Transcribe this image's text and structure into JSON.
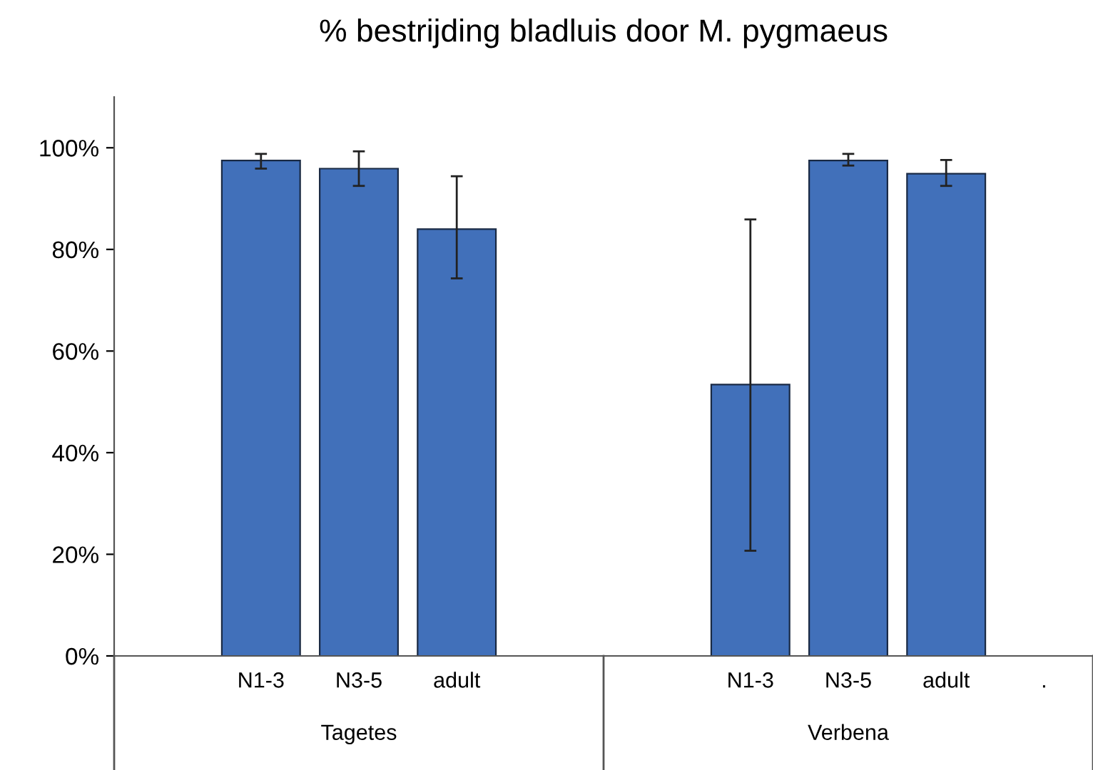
{
  "chart_data": {
    "type": "bar",
    "title": "% bestrijding bladluis door M. pygmaeus",
    "categories": [
      null,
      "N1-3",
      "N3-5",
      "adult",
      null,
      null,
      "N1-3",
      "N3-5",
      "adult",
      "."
    ],
    "values": [
      null,
      97.5,
      95.9,
      84.0,
      null,
      null,
      53.4,
      97.5,
      94.9,
      null
    ],
    "errors": [
      null,
      [
        95.9,
        98.8
      ],
      [
        92.5,
        99.3
      ],
      [
        74.3,
        94.4
      ],
      null,
      null,
      [
        20.7,
        85.9
      ],
      [
        96.5,
        98.8
      ],
      [
        92.5,
        97.6
      ],
      null
    ],
    "color": "#4170ba",
    "ylim": [
      0,
      110
    ],
    "yticks": [
      {
        "value": 0,
        "label": "0%"
      },
      {
        "value": 20,
        "label": "20%"
      },
      {
        "value": 40,
        "label": "40%"
      },
      {
        "value": 60,
        "label": "60%"
      },
      {
        "value": 80,
        "label": "80%"
      },
      {
        "value": 100,
        "label": "100%"
      }
    ],
    "annotations": [
      "Tagetes",
      "Verbena"
    ],
    "grid": false
  }
}
